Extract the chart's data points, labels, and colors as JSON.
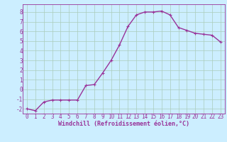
{
  "x": [
    0,
    1,
    2,
    3,
    4,
    5,
    6,
    7,
    8,
    9,
    10,
    11,
    12,
    13,
    14,
    15,
    16,
    17,
    18,
    19,
    20,
    21,
    22,
    23
  ],
  "y": [
    -2.0,
    -2.2,
    -1.3,
    -1.1,
    -1.1,
    -1.1,
    -1.1,
    0.4,
    0.5,
    1.7,
    3.0,
    4.6,
    6.5,
    7.7,
    8.0,
    8.0,
    8.1,
    7.7,
    6.4,
    6.1,
    5.8,
    5.7,
    5.6,
    4.9
  ],
  "line_color": "#993399",
  "marker": "+",
  "marker_size": 3,
  "bg_color": "#cceeff",
  "grid_color": "#aaccbb",
  "xlabel": "Windchill (Refroidissement éolien,°C)",
  "xlim": [
    -0.5,
    23.5
  ],
  "ylim": [
    -2.5,
    8.8
  ],
  "xticks": [
    0,
    1,
    2,
    3,
    4,
    5,
    6,
    7,
    8,
    9,
    10,
    11,
    12,
    13,
    14,
    15,
    16,
    17,
    18,
    19,
    20,
    21,
    22,
    23
  ],
  "yticks": [
    -2,
    -1,
    0,
    1,
    2,
    3,
    4,
    5,
    6,
    7,
    8
  ],
  "tick_color": "#993399",
  "label_color": "#993399",
  "label_fontsize": 6,
  "tick_fontsize": 5.5,
  "line_width": 1.0
}
